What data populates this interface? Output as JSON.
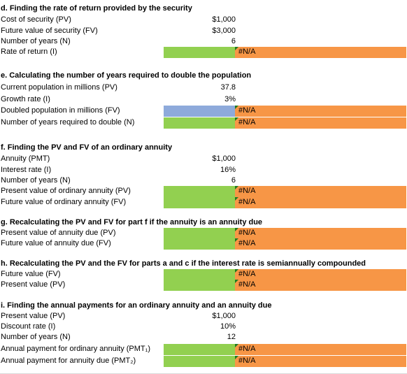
{
  "sections": {
    "d": {
      "title": "d. Finding the rate of return provided by the security",
      "rows": [
        {
          "label": "Cost of security (PV)",
          "value": "$1,000"
        },
        {
          "label": "Future value of security (FV)",
          "value": "$3,000"
        },
        {
          "label": "Number of years (N)",
          "value": "6"
        },
        {
          "label": "Rate of return (I)",
          "result": "#N/A"
        }
      ]
    },
    "e": {
      "title": "e. Calculating the number of years required to double the population",
      "rows": [
        {
          "label": "Current population in millions (PV)",
          "value": "37.8"
        },
        {
          "label": "Growth rate (I)",
          "value": "3%"
        },
        {
          "label": "Doubled population in millions (FV)",
          "result": "#N/A"
        },
        {
          "label": "Number of years required to double (N)",
          "result": "#N/A"
        }
      ]
    },
    "f": {
      "title": "f. Finding the PV and FV of an ordinary annuity",
      "rows": [
        {
          "label": "Annuity (PMT)",
          "value": "$1,000"
        },
        {
          "label": "Interest rate (I)",
          "value": "16%"
        },
        {
          "label": "Number of years (N)",
          "value": "6"
        },
        {
          "label": "Present value of ordinary annuity (PV)",
          "result": "#N/A"
        },
        {
          "label": "Future value of ordinary annuity (FV)",
          "result": "#N/A"
        }
      ]
    },
    "g": {
      "title": "g. Recalculating the PV and FV for part f if the annuity is an annuity due",
      "rows": [
        {
          "label": "Present value of annuity due (PV)",
          "result": "#N/A"
        },
        {
          "label": "Future value of annuity due (FV)",
          "result": "#N/A"
        }
      ]
    },
    "h": {
      "title": "h. Recalculating the PV and the FV for parts a and c if the interest rate is semiannually compounded",
      "rows": [
        {
          "label": "Future value (FV)",
          "result": "#N/A"
        },
        {
          "label": "Present value (PV)",
          "result": "#N/A"
        }
      ]
    },
    "i": {
      "title": "i. Finding the annual payments for an ordinary annuity and an annuity due",
      "rows": [
        {
          "label": "Present value (PV)",
          "value": "$1,000"
        },
        {
          "label": "Discount rate (I)",
          "value": "10%"
        },
        {
          "label": "Number of years (N)",
          "value": "12"
        },
        {
          "label": "Annual payment for ordinary annuity (PMT₁)",
          "result": "#N/A"
        },
        {
          "label": "Annual payment for annuity due (PMT₂)",
          "result": "#N/A"
        }
      ]
    }
  },
  "colors": {
    "input_cell": "#92d050",
    "input_cell_alt": "#8eaadb",
    "result_cell": "#f79646",
    "error_indicator": "#1f7a1f"
  }
}
